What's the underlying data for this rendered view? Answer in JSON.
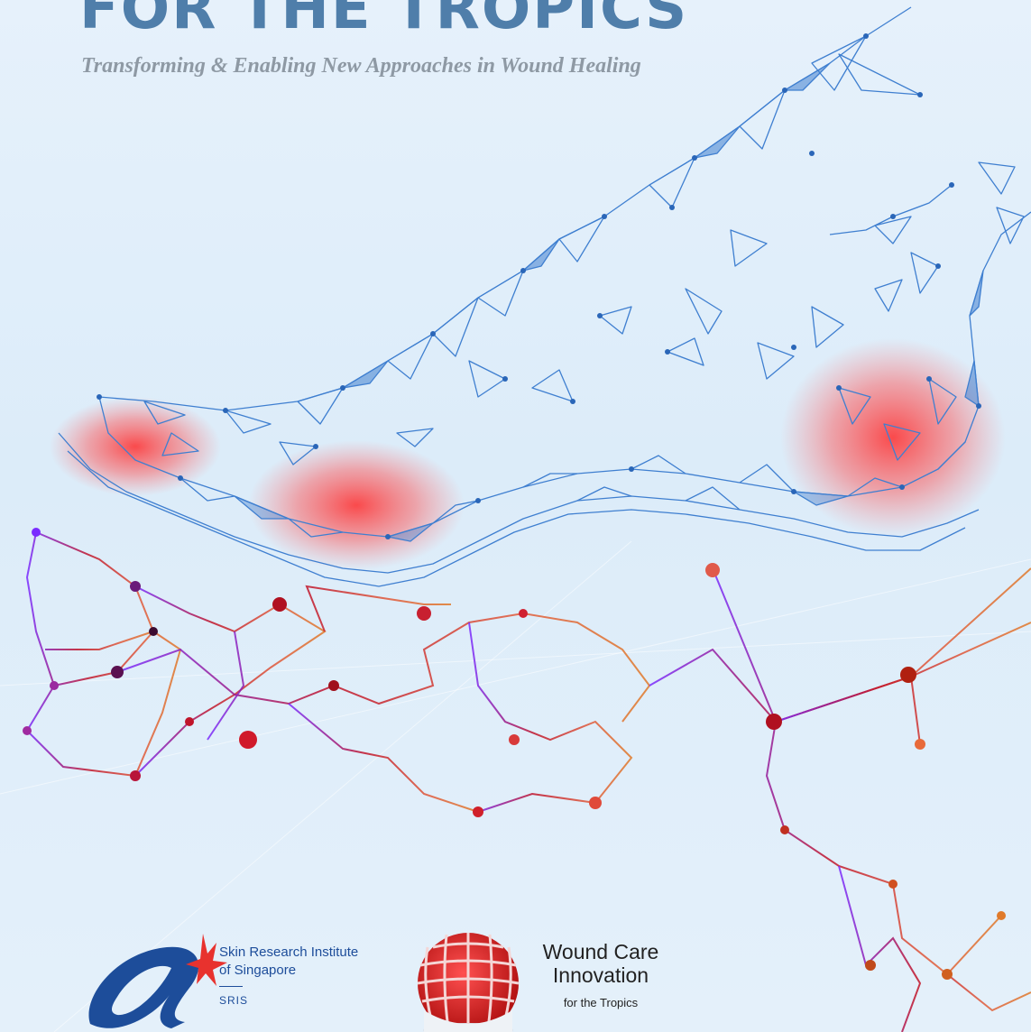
{
  "cover": {
    "title": "FOR THE TROPICS",
    "subtitle": "Transforming & Enabling New Approaches in Wound Healing"
  },
  "illustration": {
    "subject": "foot-mesh",
    "mesh_color": "#3f7fd0",
    "hotspot_color": "#ff3b3b",
    "network_colors": [
      "#7a2cff",
      "#c0142a",
      "#e85a2a",
      "#e07a2a"
    ]
  },
  "logos": {
    "astar": {
      "icon": "astar-logo",
      "accent": "#e8322e",
      "brand": "#1d4d9a"
    },
    "sris": {
      "name_line1": "Skin Research Institute",
      "name_line2": "of Singapore",
      "abbreviation": "SRIS"
    },
    "wound_care": {
      "icon": "wound-care-globe-logo",
      "name_line1": "Wound Care",
      "name_line2": "Innovation",
      "tagline": "for the Tropics"
    }
  }
}
